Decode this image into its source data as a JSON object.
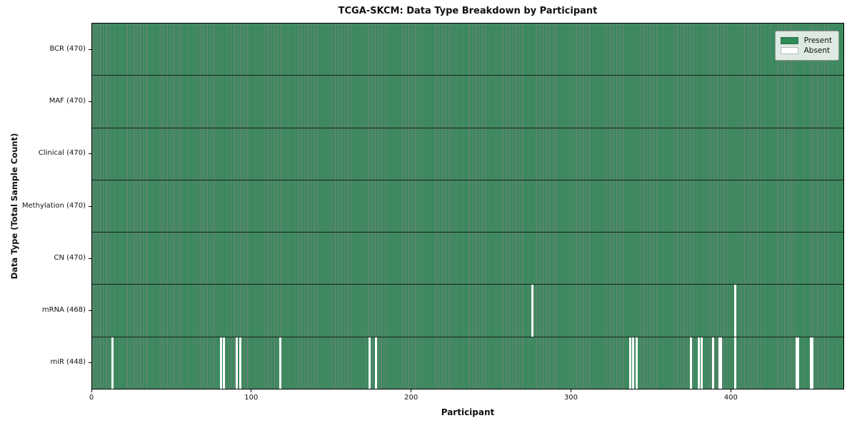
{
  "title": "TCGA-SKCM: Data Type Breakdown by Participant",
  "chart_data": {
    "type": "heatmap",
    "title": "TCGA-SKCM: Data Type Breakdown by Participant",
    "xlabel": "Participant",
    "ylabel": "Data Type (Total Sample Count)",
    "x_ticks": [
      0,
      100,
      200,
      300,
      400
    ],
    "x_range": [
      0,
      470
    ],
    "n_participants": 470,
    "grid": "cell-borders",
    "legend_position": "upper right",
    "rows": [
      {
        "label": "BCR (470)",
        "data_type": "BCR",
        "present_count": 470,
        "absent": []
      },
      {
        "label": "MAF (470)",
        "data_type": "MAF",
        "present_count": 470,
        "absent": []
      },
      {
        "label": "Clinical (470)",
        "data_type": "Clinical",
        "present_count": 470,
        "absent": []
      },
      {
        "label": "Methylation (470)",
        "data_type": "Methylation",
        "present_count": 470,
        "absent": []
      },
      {
        "label": "CN (470)",
        "data_type": "CN",
        "present_count": 470,
        "absent": []
      },
      {
        "label": "mRNA (468)",
        "data_type": "mRNA",
        "present_count": 468,
        "absent": [
          275,
          402
        ]
      },
      {
        "label": "miR (448)",
        "data_type": "miR",
        "present_count": 448,
        "absent": [
          12,
          80,
          82,
          90,
          92,
          117,
          173,
          177,
          336,
          338,
          340,
          374,
          379,
          381,
          388,
          392,
          393,
          402,
          440,
          441,
          449,
          450
        ]
      }
    ],
    "legend": {
      "entries": [
        {
          "label": "Present",
          "color": "#2e8b57"
        },
        {
          "label": "Absent",
          "color": "#ffffff"
        }
      ]
    },
    "colors": {
      "present": "#2e8b57",
      "absent": "#ffffff",
      "cell_border": "rgba(0,0,0,0.5)",
      "row_divider": "rgba(15,15,15,0.85)"
    }
  }
}
